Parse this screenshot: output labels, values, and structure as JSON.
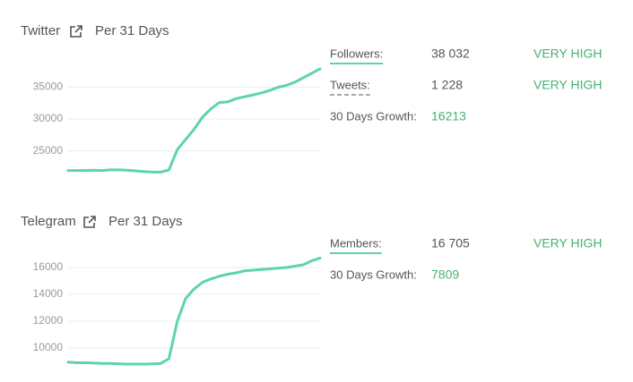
{
  "chart_data": [
    {
      "type": "line",
      "title": "Twitter",
      "subtitle": "Per 31 Days",
      "color": "#5dd3b0",
      "values": [
        21900,
        21900,
        21900,
        21950,
        21900,
        22000,
        22000,
        21950,
        21850,
        21750,
        21650,
        21650,
        22000,
        25200,
        26800,
        28400,
        30300,
        31600,
        32600,
        32700,
        33200,
        33500,
        33800,
        34100,
        34500,
        35000,
        35300,
        35800,
        36500,
        37200,
        37900
      ],
      "ylim": [
        21000,
        40000
      ],
      "yticks": [
        25000,
        30000,
        35000
      ],
      "grid": true
    },
    {
      "type": "line",
      "title": "Telegram",
      "subtitle": "Per 31 Days",
      "color": "#5dd3b0",
      "values": [
        8950,
        8900,
        8900,
        8880,
        8850,
        8850,
        8830,
        8800,
        8800,
        8800,
        8820,
        8850,
        9200,
        12000,
        13700,
        14400,
        14900,
        15150,
        15350,
        15500,
        15600,
        15750,
        15800,
        15850,
        15900,
        15950,
        16000,
        16100,
        16200,
        16500,
        16700
      ],
      "ylim": [
        8400,
        17800
      ],
      "yticks": [
        10000,
        12000,
        14000,
        16000
      ],
      "grid": true
    }
  ],
  "stats": [
    [
      {
        "label": "Followers:",
        "value": "38 032",
        "rating": "VERY HIGH"
      },
      {
        "label": "Tweets:",
        "value": "1 228",
        "rating": "VERY HIGH"
      },
      {
        "label": "30 Days Growth:",
        "value": "16213"
      }
    ],
    [
      {
        "label": "Members:",
        "value": "16 705",
        "rating": "VERY HIGH"
      },
      {
        "label": "30 Days Growth:",
        "value": "7809"
      }
    ]
  ]
}
